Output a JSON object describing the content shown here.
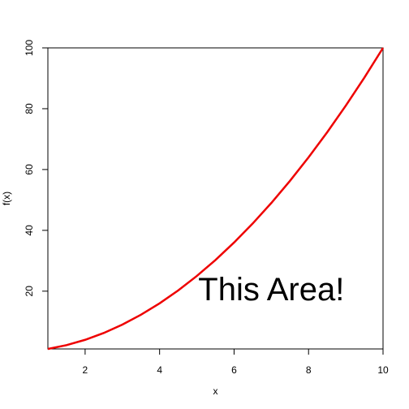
{
  "chart_data": {
    "type": "line",
    "title": "",
    "xlabel": "x",
    "ylabel": "f(x)",
    "xlim": [
      1,
      10
    ],
    "ylim": [
      1,
      100
    ],
    "x_ticks": [
      2,
      4,
      6,
      8,
      10
    ],
    "y_ticks": [
      20,
      40,
      60,
      80,
      100
    ],
    "grid": false,
    "series": [
      {
        "function": "x^2",
        "color": "#ee0000",
        "x": [
          1,
          1.5,
          2,
          2.5,
          3,
          3.5,
          4,
          4.5,
          5,
          5.5,
          6,
          6.5,
          7,
          7.5,
          8,
          8.5,
          9,
          9.5,
          10
        ],
        "y": [
          1,
          2.25,
          4,
          6.25,
          9,
          12.25,
          16,
          20.25,
          25,
          30.25,
          36,
          42.25,
          49,
          56.25,
          64,
          72.25,
          81,
          90.25,
          100
        ]
      }
    ],
    "annotations": [
      {
        "text": "This Area!",
        "x": 7,
        "y": 17
      }
    ]
  }
}
